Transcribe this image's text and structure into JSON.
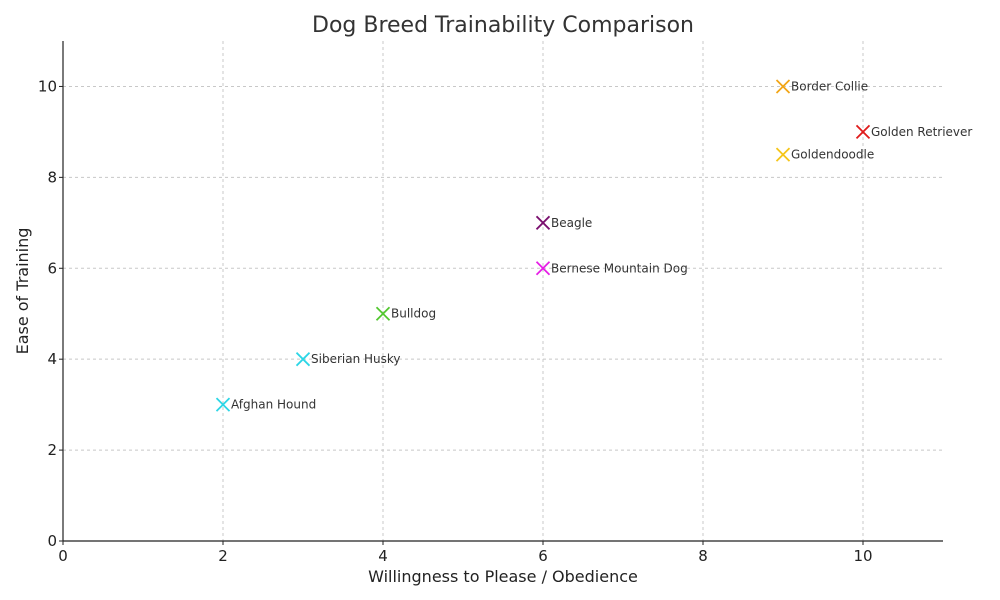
{
  "chart_data": {
    "type": "scatter",
    "title": "Dog Breed Trainability Comparison",
    "xlabel": "Willingness to Please / Obedience",
    "ylabel": "Ease of Training",
    "xlim": [
      0,
      11
    ],
    "ylim": [
      0,
      11
    ],
    "xticks": [
      0,
      2,
      4,
      6,
      8,
      10
    ],
    "yticks": [
      0,
      2,
      4,
      6,
      8,
      10
    ],
    "grid": true,
    "marker": "x",
    "points": [
      {
        "name": "Border Collie",
        "x": 9,
        "y": 10,
        "color": "#f2a516"
      },
      {
        "name": "Golden Retriever",
        "x": 10,
        "y": 9,
        "color": "#e01b1b"
      },
      {
        "name": "Goldendoodle",
        "x": 9,
        "y": 8.5,
        "color": "#f5c518"
      },
      {
        "name": "Beagle",
        "x": 6,
        "y": 7,
        "color": "#7a0f6e"
      },
      {
        "name": "Bernese Mountain Dog",
        "x": 6,
        "y": 6,
        "color": "#e61ee6"
      },
      {
        "name": "Bulldog",
        "x": 4,
        "y": 5,
        "color": "#52c72f"
      },
      {
        "name": "Siberian Husky",
        "x": 3,
        "y": 4,
        "color": "#2cd6e6"
      },
      {
        "name": "Afghan Hound",
        "x": 2,
        "y": 3,
        "color": "#2cd6e6"
      }
    ]
  }
}
